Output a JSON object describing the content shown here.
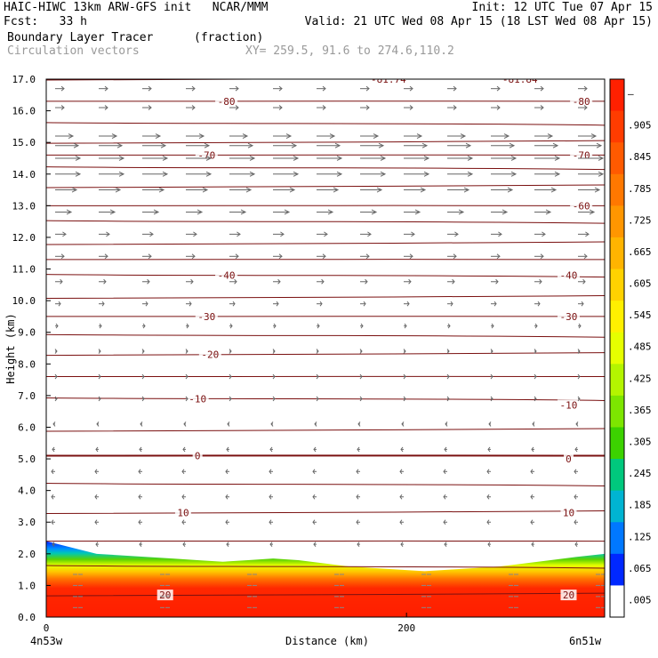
{
  "header": {
    "line1_left": "HAIC-HIWC 13km ARW-GFS init   NCAR/MMM",
    "line1_right": "Init: 12 UTC Tue 07 Apr 15",
    "line2_left": "Fcst:   33 h",
    "line2_right": "Valid: 21 UTC Wed 08 Apr 15 (18 LST Wed 08 Apr 15)",
    "field_name": "Boundary Layer Tracer",
    "field_units": "(fraction)",
    "vectors_label": "Circulation vectors",
    "xy_label": "XY= 259.5, 91.6 to 274.6,110.2"
  },
  "chart_data": {
    "type": "heatmap",
    "xlabel": "Distance (km)",
    "ylabel": "Height (km)",
    "x_ticks": [
      "0",
      "200"
    ],
    "x_left_label": "4n53w",
    "x_right_label": "6n51w",
    "xlim": [
      0,
      310
    ],
    "ylim": [
      0,
      17
    ],
    "y_ticks": [
      "0.0",
      "1.0",
      "2.0",
      "3.0",
      "4.0",
      "5.0",
      "6.0",
      "7.0",
      "8.0",
      "9.0",
      "10.0",
      "11.0",
      "12.0",
      "13.0",
      "14.0",
      "15.0",
      "16.0",
      "17.0"
    ],
    "colorbar_labels": [
      "–",
      ".905",
      ".845",
      ".785",
      ".725",
      ".665",
      ".605",
      ".545",
      ".485",
      ".425",
      ".365",
      ".305",
      ".245",
      ".185",
      ".125",
      ".065",
      ".005"
    ],
    "colorbar_colors": [
      "#ff2000",
      "#ff3c00",
      "#ff5a00",
      "#ff7800",
      "#ff9600",
      "#ffb400",
      "#ffd200",
      "#fff000",
      "#e6ff00",
      "#b4f500",
      "#7de600",
      "#3cd200",
      "#00c87d",
      "#00b4d2",
      "#0078ff",
      "#0028ff",
      "#ffffff"
    ],
    "tracer_top_height_km": [
      2.4,
      2.2,
      2.0,
      1.95,
      1.9,
      1.85,
      1.8,
      1.75,
      1.8,
      1.85,
      1.8,
      1.7,
      1.6,
      1.55,
      1.5,
      1.45,
      1.5,
      1.55,
      1.6,
      1.7,
      1.8,
      1.9,
      2.0
    ],
    "tracer_top_x_km": [
      0,
      14,
      28,
      42,
      56,
      70,
      84,
      98,
      112,
      126,
      140,
      154,
      168,
      182,
      196,
      210,
      224,
      238,
      252,
      266,
      280,
      294,
      310
    ],
    "isotherm_levels_c": [
      {
        "label": "-81.74",
        "height_km": 17.0,
        "x_km": 190
      },
      {
        "label": "-81.84",
        "height_km": 17.0,
        "x_km": 263
      },
      {
        "label": "-80",
        "height_km": 16.3,
        "x_km": 100
      },
      {
        "label": "-80",
        "height_km": 16.3,
        "x_km": 297
      },
      {
        "label": "-70",
        "height_km": 14.6,
        "x_km": 89
      },
      {
        "label": "-70",
        "height_km": 14.6,
        "x_km": 297
      },
      {
        "label": "-60",
        "height_km": 13.0,
        "x_km": 297
      },
      {
        "label": "-40",
        "height_km": 10.8,
        "x_km": 100
      },
      {
        "label": "-40",
        "height_km": 10.8,
        "x_km": 290
      },
      {
        "label": "-30",
        "height_km": 9.5,
        "x_km": 89
      },
      {
        "label": "-30",
        "height_km": 9.5,
        "x_km": 290
      },
      {
        "label": "-20",
        "height_km": 8.3,
        "x_km": 91
      },
      {
        "label": "-10",
        "height_km": 6.9,
        "x_km": 84
      },
      {
        "label": "-10",
        "height_km": 6.7,
        "x_km": 290
      },
      {
        "label": "0",
        "height_km": 5.1,
        "x_km": 84
      },
      {
        "label": "0",
        "height_km": 5.0,
        "x_km": 290
      },
      {
        "label": "10",
        "height_km": 3.3,
        "x_km": 76
      },
      {
        "label": "10",
        "height_km": 3.3,
        "x_km": 290
      },
      {
        "label": "20",
        "height_km": 0.7,
        "x_km": 66
      },
      {
        "label": "20",
        "height_km": 0.7,
        "x_km": 290
      }
    ],
    "isotherm_line_heights_km": [
      17.0,
      16.3,
      15.6,
      15.0,
      14.6,
      14.2,
      13.6,
      13.0,
      12.5,
      11.8,
      11.3,
      10.8,
      10.1,
      9.5,
      8.9,
      8.3,
      7.6,
      6.9,
      5.9,
      5.1,
      4.2,
      3.3,
      2.4,
      1.6,
      0.7
    ],
    "wind_rows": [
      {
        "height_km": 16.7,
        "len": 10
      },
      {
        "height_km": 16.1,
        "len": 10
      },
      {
        "height_km": 15.2,
        "len": 20
      },
      {
        "height_km": 14.9,
        "len": 26
      },
      {
        "height_km": 14.5,
        "len": 28
      },
      {
        "height_km": 14.0,
        "len": 28
      },
      {
        "height_km": 13.5,
        "len": 24
      },
      {
        "height_km": 12.8,
        "len": 18
      },
      {
        "height_km": 12.1,
        "len": 12
      },
      {
        "height_km": 11.4,
        "len": 10
      },
      {
        "height_km": 10.6,
        "len": 8
      },
      {
        "height_km": 9.9,
        "len": 6
      },
      {
        "height_km": 9.2,
        "len": 3
      },
      {
        "height_km": 8.4,
        "len": 2
      },
      {
        "height_km": 7.6,
        "len": 2
      },
      {
        "height_km": 6.9,
        "len": 2
      },
      {
        "height_km": 6.1,
        "len": -2
      },
      {
        "height_km": 5.3,
        "len": -3
      },
      {
        "height_km": 4.6,
        "len": -4
      },
      {
        "height_km": 3.8,
        "len": -4
      },
      {
        "height_km": 3.0,
        "len": -4
      },
      {
        "height_km": 2.3,
        "len": -3
      }
    ]
  }
}
